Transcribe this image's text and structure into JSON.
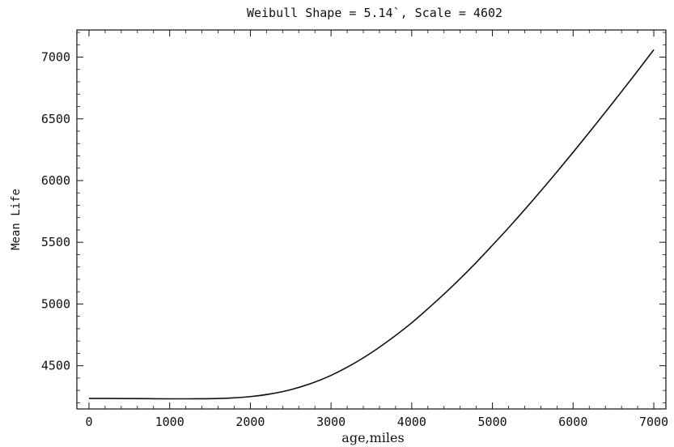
{
  "chart_data": {
    "type": "line",
    "title": "Weibull Shape = 5.14`, Scale = 4602",
    "xlabel": "age,miles",
    "ylabel": "Mean Life",
    "xlim": [
      -150,
      7150
    ],
    "ylim": [
      4150,
      7220
    ],
    "x_ticks": [
      0,
      1000,
      2000,
      3000,
      4000,
      5000,
      6000,
      7000
    ],
    "x_tick_labels": [
      "0",
      "1000",
      "2000",
      "3000",
      "4000",
      "5000",
      "6000",
      "7000"
    ],
    "y_ticks": [
      4500,
      5000,
      5500,
      6000,
      6500,
      7000
    ],
    "y_tick_labels": [
      "4500",
      "5000",
      "5500",
      "6000",
      "6500",
      "7000"
    ],
    "grid": false,
    "series": [
      {
        "x": [
          0,
          250,
          500,
          750,
          1000,
          1250,
          1500,
          1750,
          2000,
          2250,
          2500,
          2750,
          3000,
          3250,
          3500,
          3750,
          4000,
          4250,
          4500,
          4750,
          5000,
          5250,
          5500,
          5750,
          6000,
          6250,
          6500,
          6750,
          7000
        ],
        "y": [
          4235,
          4235,
          4234,
          4233,
          4232,
          4232,
          4233,
          4238,
          4250,
          4272,
          4306,
          4356,
          4422,
          4506,
          4606,
          4721,
          4848,
          4991,
          5142,
          5303,
          5476,
          5654,
          5840,
          6032,
          6229,
          6431,
          6637,
          6846,
          7060
        ]
      }
    ]
  }
}
